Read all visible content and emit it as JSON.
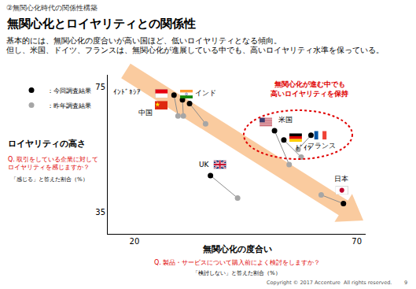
{
  "section": "②無関心化時代の関係性構築",
  "chart_data": {
    "type": "scatter",
    "title": "無関心化とロイヤリティとの関係性",
    "subtitle": [
      "基本的には、無関心化の度合いが高い国ほど、低いロイヤリティとなる傾向。",
      "但し、米国、ドイツ、フランスは、無関心化が進展している中でも、高いロイヤリティ水準を保っている。"
    ],
    "xlabel": "無関心化の度合い",
    "xlabel_question": [
      "Q. 製品・サービスについて購入前によく検討をしますか？"
    ],
    "xlabel_answer": "「検討しない」と答えた割合（%）",
    "ylabel": "ロイヤリティの高さ",
    "ylabel_question": [
      "Q. 取引をしている企業に対して",
      "ロイヤリティを感じますか？"
    ],
    "ylabel_answer": "「感じる」と答えた割合（%）",
    "countries": [
      "ｲﾝﾄﾞﾈｼｱ",
      "中国",
      "インド",
      "米国",
      "ﾄﾞｲﾂ",
      "フランス",
      "UK",
      "日本"
    ],
    "series": [
      {
        "name": "：今回調査結果",
        "color": "#000000",
        "marker": "circle",
        "x": [
          28.9,
          30.8,
          32.4,
          51.5,
          53.6,
          59.7,
          37.1,
          67.0
        ],
        "y": [
          72.5,
          71.0,
          69.8,
          61.1,
          58.1,
          59.6,
          46.7,
          37.7
        ]
      },
      {
        "name": "：昨年調査結果",
        "color": "#a6a6a6",
        "marker": "circle",
        "x": [
          29.8,
          31.0,
          36.0,
          54.8,
          57.5,
          56.8,
          43.2,
          62.0
        ],
        "y": [
          65.8,
          65.8,
          63.3,
          50.2,
          52.6,
          55.1,
          39.5,
          40.5
        ]
      }
    ],
    "xlim": [
      14,
      72
    ],
    "xticks": [
      20,
      70
    ],
    "ylim": [
      28,
      79
    ],
    "yticks": [
      35,
      75
    ],
    "grid": false,
    "legend": "top-left",
    "annotations": [
      {
        "text": [
          "無関心化が進む中でも",
          "高いロイヤリティを保持"
        ],
        "color": "#e00000"
      }
    ]
  },
  "footer": {
    "copyright": "Copyright © 2017 Accenture  All rights reserved.",
    "page": "9"
  }
}
